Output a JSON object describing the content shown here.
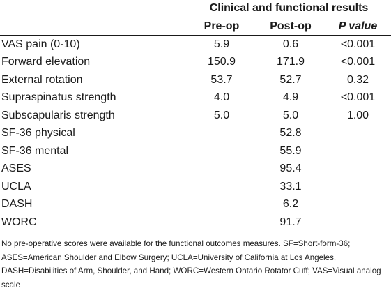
{
  "table": {
    "group_title": "Clinical and functional results",
    "columns": {
      "pre": "Pre-op",
      "post": "Post-op",
      "p_letter": "P",
      "p_rest": " value"
    },
    "rows": [
      {
        "label": "VAS pain (0-10)",
        "pre": "5.9",
        "post": "0.6",
        "p": "<0.001"
      },
      {
        "label": "Forward elevation",
        "pre": "150.9",
        "post": "171.9",
        "p": "<0.001"
      },
      {
        "label": "External rotation",
        "pre": "53.7",
        "post": "52.7",
        "p": "0.32"
      },
      {
        "label": "Supraspinatus strength",
        "pre": "4.0",
        "post": "4.9",
        "p": "<0.001"
      },
      {
        "label": "Subscapularis strength",
        "pre": "5.0",
        "post": "5.0",
        "p": "1.00"
      },
      {
        "label": "SF-36 physical",
        "pre": "",
        "post": "52.8",
        "p": ""
      },
      {
        "label": "SF-36 mental",
        "pre": "",
        "post": "55.9",
        "p": ""
      },
      {
        "label": "ASES",
        "pre": "",
        "post": "95.4",
        "p": ""
      },
      {
        "label": "UCLA",
        "pre": "",
        "post": "33.1",
        "p": ""
      },
      {
        "label": "DASH",
        "pre": "",
        "post": "6.2",
        "p": ""
      },
      {
        "label": "WORC",
        "pre": "",
        "post": "91.7",
        "p": ""
      }
    ]
  },
  "footnote": "No pre-operative scores were available for the functional outcomes measures. SF=Short-form-36; ASES=American Shoulder and Elbow Surgery; UCLA=University of California at Los Angeles, DASH=Disabilities of Arm, Shoulder, and Hand; WORC=Western Ontario Rotator Cuff; VAS=Visual analog scale"
}
